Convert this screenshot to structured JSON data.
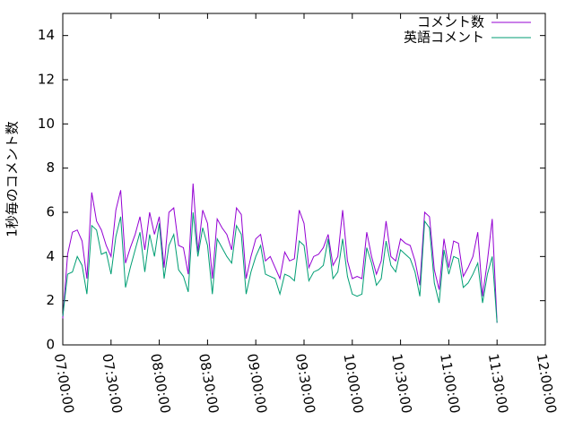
{
  "chart_data": {
    "type": "line",
    "ylabel": "1秒毎のコメント数",
    "x": [
      "07:00:00",
      "07:03:00",
      "07:06:00",
      "07:09:00",
      "07:12:00",
      "07:15:00",
      "07:18:00",
      "07:21:00",
      "07:24:00",
      "07:27:00",
      "07:30:00",
      "07:33:00",
      "07:36:00",
      "07:39:00",
      "07:42:00",
      "07:45:00",
      "07:48:00",
      "07:51:00",
      "07:54:00",
      "07:57:00",
      "08:00:00",
      "08:03:00",
      "08:06:00",
      "08:09:00",
      "08:12:00",
      "08:15:00",
      "08:18:00",
      "08:21:00",
      "08:24:00",
      "08:27:00",
      "08:30:00",
      "08:33:00",
      "08:36:00",
      "08:39:00",
      "08:42:00",
      "08:45:00",
      "08:48:00",
      "08:51:00",
      "08:54:00",
      "08:57:00",
      "09:00:00",
      "09:03:00",
      "09:06:00",
      "09:09:00",
      "09:12:00",
      "09:15:00",
      "09:18:00",
      "09:21:00",
      "09:24:00",
      "09:27:00",
      "09:30:00",
      "09:33:00",
      "09:36:00",
      "09:39:00",
      "09:42:00",
      "09:45:00",
      "09:48:00",
      "09:51:00",
      "09:54:00",
      "09:57:00",
      "10:00:00",
      "10:03:00",
      "10:06:00",
      "10:09:00",
      "10:12:00",
      "10:15:00",
      "10:18:00",
      "10:21:00",
      "10:24:00",
      "10:27:00",
      "10:30:00",
      "10:33:00",
      "10:36:00",
      "10:39:00",
      "10:42:00",
      "10:45:00",
      "10:48:00",
      "10:51:00",
      "10:54:00",
      "10:57:00",
      "11:00:00",
      "11:03:00",
      "11:06:00",
      "11:09:00",
      "11:12:00",
      "11:15:00",
      "11:18:00",
      "11:21:00",
      "11:24:00",
      "11:27:00",
      "11:30:00"
    ],
    "series": [
      {
        "name": "コメント数",
        "color": "#9400d3",
        "values": [
          1.2,
          4.1,
          5.1,
          5.2,
          4.7,
          3.0,
          6.9,
          5.6,
          5.2,
          4.5,
          4.0,
          6.1,
          7.0,
          3.7,
          4.4,
          5.0,
          5.8,
          4.3,
          6.0,
          5.0,
          5.8,
          3.5,
          6.0,
          6.2,
          4.5,
          4.4,
          3.2,
          7.3,
          4.2,
          6.1,
          5.5,
          3.0,
          5.7,
          5.3,
          5.0,
          4.3,
          6.2,
          5.9,
          3.0,
          4.0,
          4.8,
          5.0,
          3.8,
          4.0,
          3.5,
          3.0,
          4.2,
          3.8,
          3.9,
          6.1,
          5.5,
          3.5,
          4.0,
          4.1,
          4.4,
          5.0,
          3.6,
          4.0,
          6.1,
          3.8,
          3.0,
          3.1,
          3.0,
          5.1,
          4.0,
          3.2,
          3.8,
          5.6,
          4.0,
          3.8,
          4.8,
          4.6,
          4.5,
          3.8,
          2.7,
          6.0,
          5.8,
          3.4,
          2.5,
          4.8,
          3.5,
          4.7,
          4.6,
          3.1,
          3.5,
          4.0,
          5.1,
          2.2,
          3.8,
          5.7,
          1.0
        ]
      },
      {
        "name": "英語コメント",
        "color": "#009e73",
        "values": [
          1.3,
          3.2,
          3.3,
          4.0,
          3.6,
          2.3,
          5.4,
          5.2,
          4.1,
          4.2,
          3.2,
          4.9,
          5.8,
          2.6,
          3.5,
          4.3,
          5.1,
          3.3,
          5.0,
          4.0,
          5.5,
          3.0,
          4.5,
          5.0,
          3.4,
          3.1,
          2.4,
          6.0,
          4.0,
          5.3,
          4.5,
          2.3,
          4.8,
          4.4,
          4.0,
          3.7,
          5.4,
          5.0,
          2.3,
          3.3,
          4.0,
          4.5,
          3.2,
          3.1,
          3.0,
          2.3,
          3.2,
          3.1,
          2.9,
          4.7,
          4.5,
          2.9,
          3.3,
          3.4,
          3.6,
          4.8,
          3.0,
          3.3,
          4.8,
          3.1,
          2.3,
          2.2,
          2.3,
          4.4,
          3.7,
          2.7,
          3.0,
          4.7,
          3.6,
          3.3,
          4.3,
          4.1,
          3.9,
          3.3,
          2.2,
          5.6,
          5.3,
          2.8,
          1.9,
          4.3,
          3.2,
          4.0,
          3.9,
          2.6,
          2.8,
          3.2,
          3.7,
          1.9,
          3.2,
          4.0,
          1.0
        ]
      }
    ],
    "xlim": [
      "07:00:00",
      "12:00:00"
    ],
    "xticks": [
      "07:00:00",
      "07:30:00",
      "08:00:00",
      "08:30:00",
      "09:00:00",
      "09:30:00",
      "10:00:00",
      "10:30:00",
      "11:00:00",
      "11:30:00",
      "12:00:00"
    ],
    "ylim": [
      0,
      15
    ],
    "yticks": [
      0,
      2,
      4,
      6,
      8,
      10,
      12,
      14
    ],
    "legend": "top-right"
  }
}
